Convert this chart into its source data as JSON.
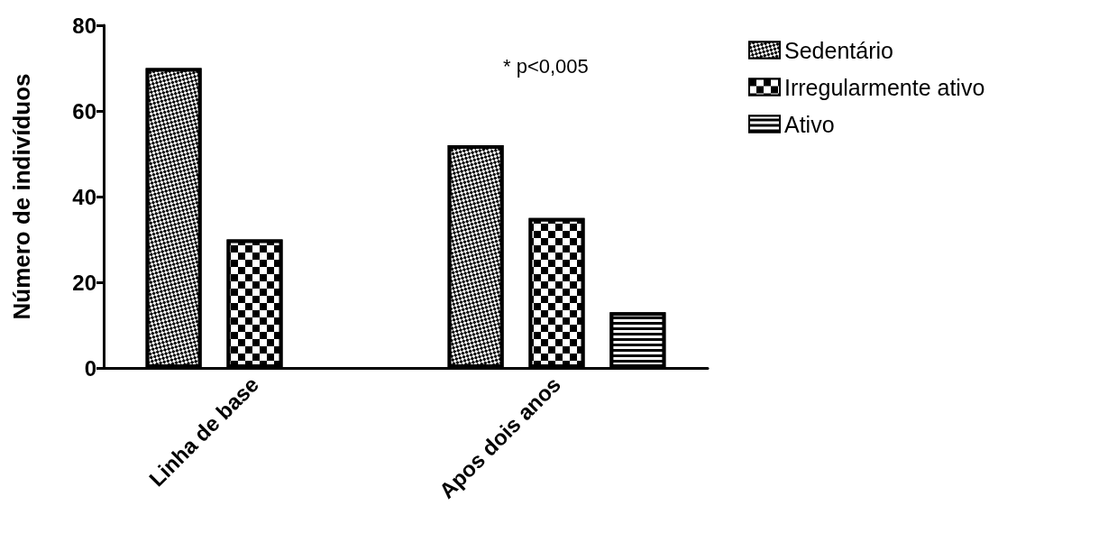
{
  "chart_data": {
    "type": "bar",
    "ylabel": "Número de indivíduos",
    "categories": [
      "Linha de base",
      "Apos dois anos"
    ],
    "series": [
      {
        "name": "Sedentário",
        "color": "#000000",
        "values": [
          70,
          52
        ]
      },
      {
        "name": "Irregularmente ativo",
        "color": "#000000",
        "values": [
          30,
          35
        ]
      },
      {
        "name": "Ativo",
        "color": "#000000",
        "values": [
          null,
          13
        ]
      }
    ],
    "ylim": [
      0,
      80
    ],
    "yticks": [
      0,
      20,
      40,
      60,
      80
    ],
    "grid": false,
    "legend": "right",
    "annotations": [
      "* p<0,005"
    ]
  }
}
